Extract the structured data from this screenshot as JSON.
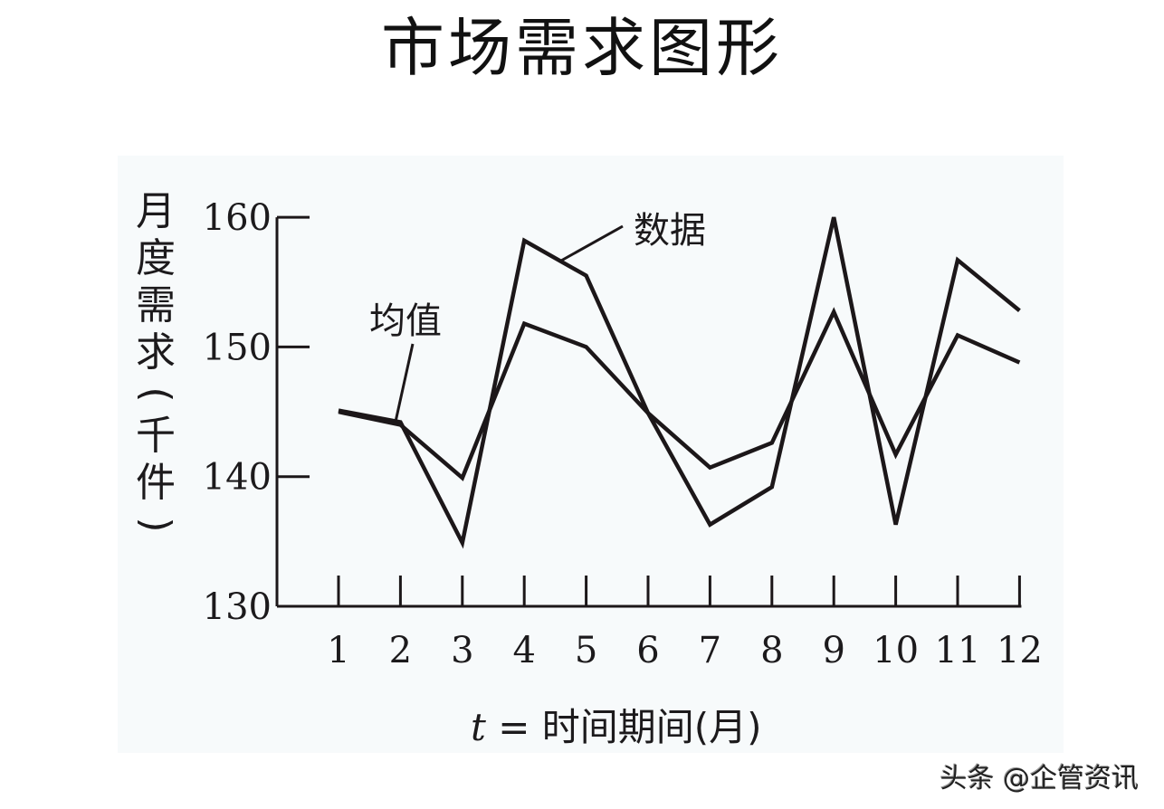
{
  "title": "市场需求图形",
  "y_axis_label_chars": [
    "月",
    "度",
    "需",
    "求",
    "(",
    "千",
    "件",
    ")"
  ],
  "x_axis_label": {
    "var": "t",
    "rest": " = 时间期间(月)"
  },
  "annotations": {
    "data": "数据",
    "mean": "均值"
  },
  "watermark": "头条 @企管资讯",
  "colors": {
    "line": "#1c1719",
    "background": "#ffffff",
    "plot_bg": "#f7fafb"
  },
  "chart_data": {
    "type": "line",
    "title": "市场需求图形",
    "xlabel": "t = 时间期间(月)",
    "ylabel": "月度需求(千件)",
    "x": [
      1,
      2,
      3,
      4,
      5,
      6,
      7,
      8,
      9,
      10,
      11,
      12
    ],
    "categories": [
      "1",
      "2",
      "3",
      "4",
      "5",
      "6",
      "7",
      "8",
      "9",
      "10",
      "11",
      "12"
    ],
    "yticks": [
      130,
      140,
      150,
      160
    ],
    "ylim": [
      130,
      160
    ],
    "grid": false,
    "legend": "inline annotations",
    "series": [
      {
        "name": "数据",
        "values": [
          145.1,
          144.2,
          134.9,
          158.2,
          155.5,
          144.9,
          136.3,
          139.2,
          160.0,
          136.3,
          156.7,
          152.8
        ]
      },
      {
        "name": "均值",
        "values": [
          145.0,
          144.0,
          139.9,
          151.8,
          150.0,
          144.9,
          140.7,
          142.6,
          152.7,
          141.7,
          150.9,
          148.8
        ]
      }
    ]
  }
}
